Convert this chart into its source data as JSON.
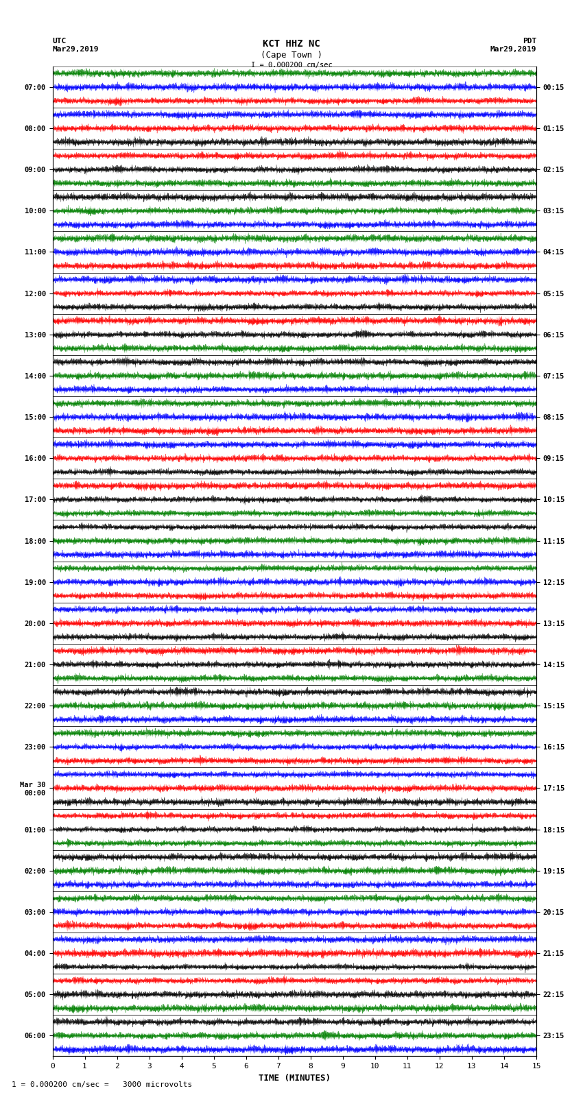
{
  "title_line1": "KCT HHZ NC",
  "title_line2": "(Cape Town )",
  "scale_label": "I = 0.000200 cm/sec",
  "left_label_line1": "UTC",
  "left_label_line2": "Mar29,2019",
  "right_label_line1": "PDT",
  "right_label_line2": "Mar29,2019",
  "bottom_label": "TIME (MINUTES)",
  "scale_note": "1 = 0.000200 cm/sec =   3000 microvolts",
  "utc_times": [
    "07:00",
    "08:00",
    "09:00",
    "10:00",
    "11:00",
    "12:00",
    "13:00",
    "14:00",
    "15:00",
    "16:00",
    "17:00",
    "18:00",
    "19:00",
    "20:00",
    "21:00",
    "22:00",
    "23:00",
    "Mar 30\n00:00",
    "01:00",
    "02:00",
    "03:00",
    "04:00",
    "05:00",
    "06:00"
  ],
  "pdt_times": [
    "00:15",
    "01:15",
    "02:15",
    "03:15",
    "04:15",
    "05:15",
    "06:15",
    "07:15",
    "08:15",
    "09:15",
    "10:15",
    "11:15",
    "12:15",
    "13:15",
    "14:15",
    "15:15",
    "16:15",
    "17:15",
    "18:15",
    "19:15",
    "20:15",
    "21:15",
    "22:15",
    "23:15"
  ],
  "n_rows": 24,
  "n_minutes": 15,
  "n_samples": 9000,
  "bg_color": "white",
  "colors_cycle": [
    "red",
    "blue",
    "green",
    "black"
  ],
  "fig_width": 8.5,
  "fig_height": 16.13,
  "dpi": 100,
  "sub_bands": 3,
  "band_amp": 0.45
}
